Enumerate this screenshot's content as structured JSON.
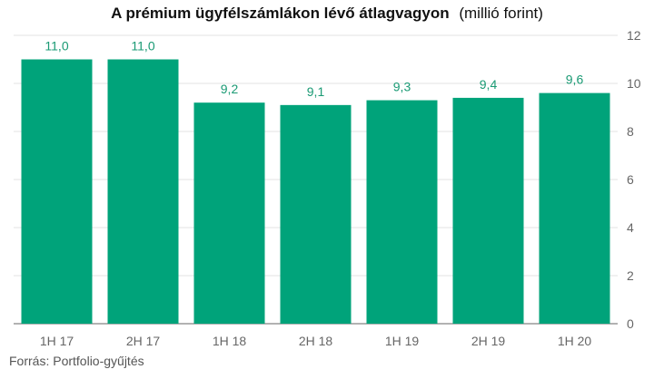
{
  "title": "A prémium ügyfélszámlákon lévő átlagvagyon",
  "unit": "(millió forint)",
  "source": "Forrás: Portfolio-gyűjtés",
  "colors": {
    "bar": "#00a37a",
    "label": "#1a9a74",
    "grid": "#e3e3e3",
    "axis": "#666666"
  },
  "chart_data": {
    "type": "bar",
    "title": "A prémium ügyfélszámlákon lévő átlagvagyon",
    "ylabel": "(millió forint)",
    "categories": [
      "1H 17",
      "2H 17",
      "1H 18",
      "2H 18",
      "1H 19",
      "2H 19",
      "1H 20"
    ],
    "values": [
      11.0,
      11.0,
      9.2,
      9.1,
      9.3,
      9.4,
      9.6
    ],
    "value_labels": [
      "11,0",
      "11,0",
      "9,2",
      "9,1",
      "9,3",
      "9,4",
      "9,6"
    ],
    "ylim": [
      0,
      12
    ],
    "yticks": [
      0,
      2,
      4,
      6,
      8,
      10,
      12
    ],
    "y_axis_side": "right",
    "grid": true,
    "legend": "none"
  }
}
